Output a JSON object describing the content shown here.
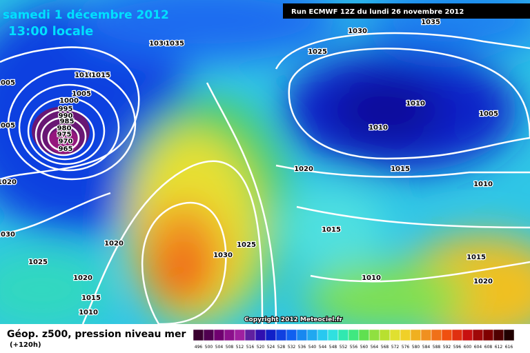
{
  "header": {
    "date": "samedi 1 décembre 2012",
    "time": "13:00 locale",
    "run": "Run ECMWF 12Z du lundi 26 novembre 2012"
  },
  "footer": {
    "title": "Géop. z500, pression niveau mer",
    "step": "(+120h)",
    "copyright": "Copyright 2012 Meteociel.fr"
  },
  "colorbar": {
    "labels": [
      496,
      500,
      504,
      508,
      512,
      516,
      520,
      524,
      528,
      532,
      536,
      540,
      544,
      548,
      552,
      556,
      560,
      564,
      568,
      572,
      576,
      580,
      584,
      588,
      592,
      596,
      600,
      604,
      608,
      612,
      616
    ]
  },
  "isobar_labels": [
    "1030",
    "1035",
    "1030",
    "1035",
    "1025",
    "1010",
    "1015",
    "1005",
    "1000",
    "995",
    "990",
    "985",
    "980",
    "975",
    "970",
    "965",
    "1005",
    "1005",
    "1020",
    "1030",
    "1025",
    "1020",
    "1020",
    "1015",
    "1010",
    "1030",
    "1025",
    "1020",
    "1015",
    "1015",
    "1010",
    "1010",
    "1005",
    "1010",
    "1015",
    "1010",
    "1020"
  ]
}
